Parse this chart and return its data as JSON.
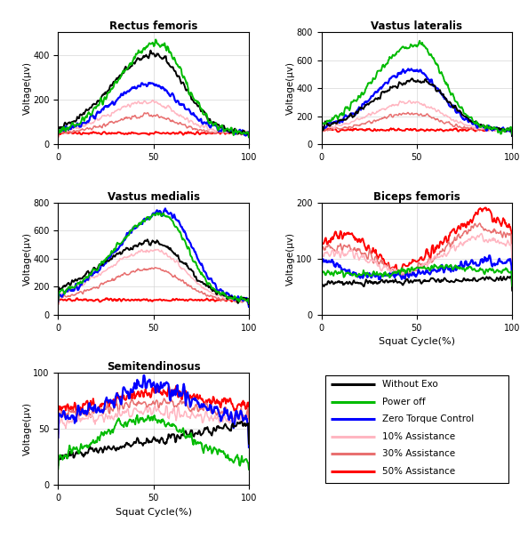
{
  "titles": [
    "Rectus femoris",
    "Vastus lateralis",
    "Vastus medialis",
    "Biceps femoris",
    "Semitendinosus"
  ],
  "ylabel": "Voltage(μv)",
  "xlabel": "Squat Cycle(%)",
  "colors": {
    "without_exo": "#000000",
    "power_off": "#00bb00",
    "zero_torque": "#0000ff",
    "assist_10": "#ffb6c1",
    "assist_30": "#e87070",
    "assist_50": "#ff0000"
  },
  "legend_labels": [
    "Without Exo",
    "Power off",
    "Zero Torque Control",
    "10% Assistance",
    "30% Assistance",
    "50% Assistance"
  ],
  "ylims": {
    "rectus_femoris": [
      0,
      500
    ],
    "vastus_lateralis": [
      0,
      800
    ],
    "vastus_medialis": [
      0,
      800
    ],
    "biceps_femoris": [
      0,
      200
    ],
    "semitendinosus": [
      0,
      100
    ]
  },
  "yticks": {
    "rectus_femoris": [
      0,
      200,
      400
    ],
    "vastus_lateralis": [
      0,
      200,
      400,
      600,
      800
    ],
    "vastus_medialis": [
      0,
      200,
      400,
      600,
      800
    ],
    "biceps_femoris": [
      0,
      100,
      200
    ],
    "semitendinosus": [
      0,
      50,
      100
    ]
  }
}
